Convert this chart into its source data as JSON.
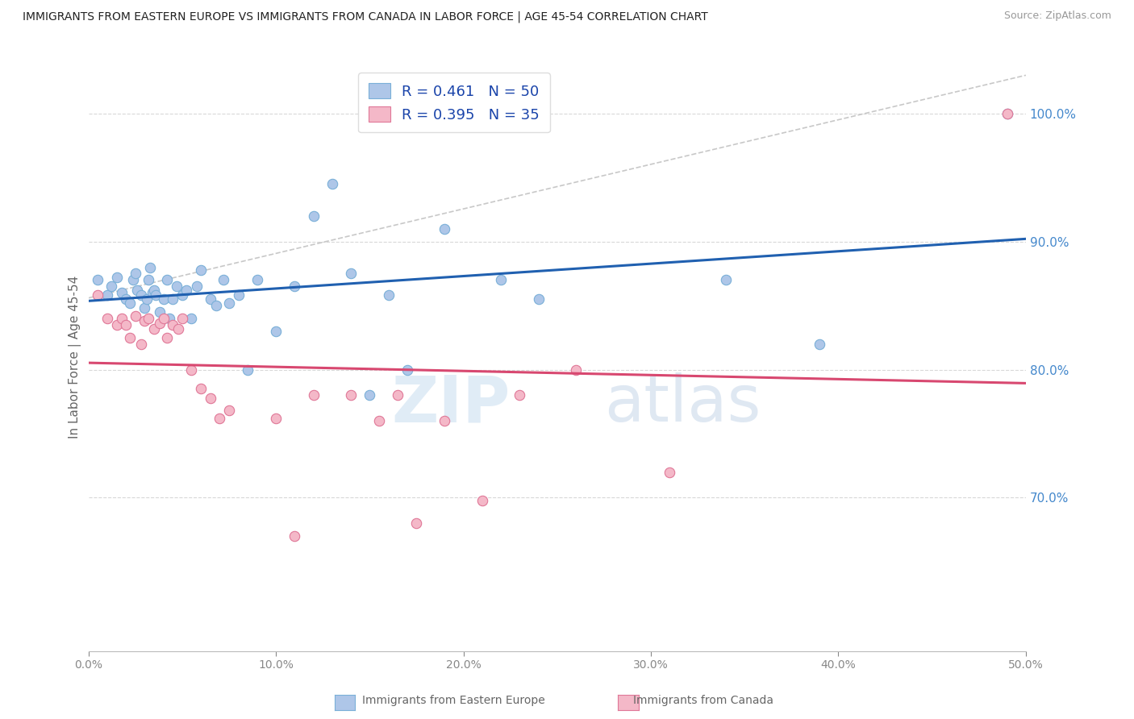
{
  "title": "IMMIGRANTS FROM EASTERN EUROPE VS IMMIGRANTS FROM CANADA IN LABOR FORCE | AGE 45-54 CORRELATION CHART",
  "source": "Source: ZipAtlas.com",
  "ylabel": "In Labor Force | Age 45-54",
  "xlim": [
    0.0,
    0.5
  ],
  "ylim": [
    0.58,
    1.04
  ],
  "xticks": [
    0.0,
    0.1,
    0.2,
    0.3,
    0.4,
    0.5
  ],
  "yticks_right": [
    0.7,
    0.8,
    0.9,
    1.0
  ],
  "legend_blue_r": "R = 0.461",
  "legend_blue_n": "N = 50",
  "legend_pink_r": "R = 0.395",
  "legend_pink_n": "N = 35",
  "blue_scatter_color": "#aec6e8",
  "blue_edge_color": "#7ab0d8",
  "pink_scatter_color": "#f4b8c8",
  "pink_edge_color": "#e07898",
  "blue_line_color": "#2060b0",
  "pink_line_color": "#d84870",
  "diagonal_color": "#c8c8c8",
  "scatter_size": 80,
  "blue_points_x": [
    0.005,
    0.01,
    0.012,
    0.015,
    0.018,
    0.02,
    0.022,
    0.024,
    0.025,
    0.026,
    0.028,
    0.03,
    0.031,
    0.032,
    0.033,
    0.034,
    0.035,
    0.036,
    0.038,
    0.04,
    0.042,
    0.043,
    0.045,
    0.047,
    0.05,
    0.052,
    0.055,
    0.058,
    0.06,
    0.065,
    0.068,
    0.072,
    0.075,
    0.08,
    0.085,
    0.09,
    0.1,
    0.11,
    0.12,
    0.13,
    0.14,
    0.15,
    0.16,
    0.17,
    0.19,
    0.22,
    0.24,
    0.34,
    0.39,
    0.49
  ],
  "blue_points_y": [
    0.87,
    0.858,
    0.865,
    0.872,
    0.86,
    0.855,
    0.852,
    0.87,
    0.875,
    0.862,
    0.858,
    0.848,
    0.855,
    0.87,
    0.88,
    0.86,
    0.862,
    0.858,
    0.845,
    0.855,
    0.87,
    0.84,
    0.855,
    0.865,
    0.858,
    0.862,
    0.84,
    0.865,
    0.878,
    0.855,
    0.85,
    0.87,
    0.852,
    0.858,
    0.8,
    0.87,
    0.83,
    0.865,
    0.92,
    0.945,
    0.875,
    0.78,
    0.858,
    0.8,
    0.91,
    0.87,
    0.855,
    0.87,
    0.82,
    1.0
  ],
  "pink_points_x": [
    0.005,
    0.01,
    0.015,
    0.018,
    0.02,
    0.022,
    0.025,
    0.028,
    0.03,
    0.032,
    0.035,
    0.038,
    0.04,
    0.042,
    0.045,
    0.048,
    0.05,
    0.055,
    0.06,
    0.065,
    0.07,
    0.075,
    0.1,
    0.11,
    0.12,
    0.14,
    0.155,
    0.165,
    0.175,
    0.19,
    0.21,
    0.23,
    0.26,
    0.31,
    0.49
  ],
  "pink_points_y": [
    0.858,
    0.84,
    0.835,
    0.84,
    0.835,
    0.825,
    0.842,
    0.82,
    0.838,
    0.84,
    0.832,
    0.836,
    0.84,
    0.825,
    0.835,
    0.832,
    0.84,
    0.8,
    0.785,
    0.778,
    0.762,
    0.768,
    0.762,
    0.67,
    0.78,
    0.78,
    0.76,
    0.78,
    0.68,
    0.76,
    0.698,
    0.78,
    0.8,
    0.72,
    1.0
  ],
  "watermark_zip": "ZIP",
  "watermark_atlas": "atlas",
  "background_color": "#ffffff",
  "grid_color": "#d8d8d8",
  "title_color": "#222222",
  "axis_label_color": "#666666",
  "right_axis_color": "#4488cc",
  "tick_color": "#888888",
  "legend_text_color": "#1a44aa",
  "legend_n_color": "#1a44aa",
  "bottom_label_color": "#666666"
}
